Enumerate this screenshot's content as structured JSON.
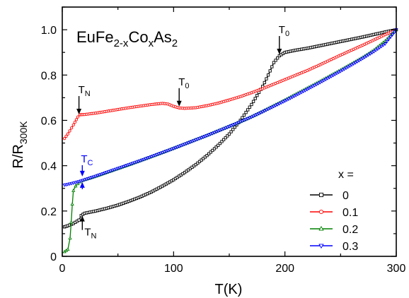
{
  "chart_data": {
    "type": "line",
    "title": "EuFe2-xCoxAs2",
    "title_parts": {
      "a": "EuFe",
      "b": "2-x",
      "c": "Co",
      "d": "x",
      "e": "As",
      "f": "2"
    },
    "xlabel": "T(K)",
    "ylabel": "R/R300K",
    "ylabel_parts": {
      "main": "R/R",
      "sub": "300K"
    },
    "xlim": [
      0,
      300
    ],
    "ylim": [
      0,
      1.1
    ],
    "x_ticks": [
      0,
      100,
      200,
      300
    ],
    "y_ticks": [
      0,
      0.2,
      0.4,
      0.6,
      0.8,
      1.0
    ],
    "x_tick_labels": [
      "0",
      "100",
      "200",
      "300"
    ],
    "y_tick_labels": [
      "0",
      "0.2",
      "0.4",
      "0.6",
      "0.8",
      "1.0"
    ],
    "grid": false,
    "legend": {
      "title": "x =",
      "placement": "lower-right",
      "entries": [
        "0",
        "0.1",
        "0.2",
        "0.3"
      ]
    },
    "series": [
      {
        "name": "0",
        "color": "#000000",
        "marker": "square",
        "x": [
          2,
          5,
          10,
          15,
          17,
          20,
          25,
          30,
          40,
          50,
          60,
          70,
          80,
          90,
          100,
          110,
          120,
          130,
          140,
          150,
          160,
          170,
          180,
          185,
          190,
          195,
          200,
          210,
          220,
          230,
          240,
          250,
          260,
          270,
          280,
          290,
          300
        ],
        "y": [
          0.13,
          0.135,
          0.145,
          0.16,
          0.18,
          0.19,
          0.195,
          0.2,
          0.212,
          0.226,
          0.243,
          0.262,
          0.284,
          0.31,
          0.338,
          0.37,
          0.405,
          0.445,
          0.49,
          0.54,
          0.6,
          0.67,
          0.75,
          0.8,
          0.855,
          0.885,
          0.9,
          0.91,
          0.918,
          0.928,
          0.938,
          0.948,
          0.958,
          0.968,
          0.979,
          0.99,
          1.0
        ]
      },
      {
        "name": "0.1",
        "color": "#ff0000",
        "marker": "circle",
        "x": [
          2,
          5,
          10,
          14,
          16,
          20,
          30,
          40,
          50,
          60,
          70,
          80,
          90,
          95,
          100,
          105,
          110,
          120,
          130,
          140,
          150,
          160,
          170,
          180,
          190,
          200,
          210,
          220,
          230,
          240,
          250,
          260,
          270,
          280,
          290,
          300
        ],
        "y": [
          0.52,
          0.54,
          0.58,
          0.615,
          0.625,
          0.626,
          0.632,
          0.64,
          0.648,
          0.656,
          0.663,
          0.67,
          0.675,
          0.672,
          0.662,
          0.655,
          0.653,
          0.656,
          0.665,
          0.676,
          0.69,
          0.705,
          0.722,
          0.74,
          0.76,
          0.78,
          0.8,
          0.82,
          0.842,
          0.865,
          0.888,
          0.91,
          0.932,
          0.955,
          0.978,
          1.0
        ]
      },
      {
        "name": "0.2",
        "color": "#008000",
        "marker": "triangle-up",
        "x": [
          2,
          5,
          7,
          8,
          9,
          10,
          12,
          14,
          16,
          18,
          20,
          25,
          30,
          40,
          50,
          60,
          70,
          80,
          90,
          100,
          110,
          120,
          130,
          140,
          150,
          160,
          170,
          180,
          190,
          200,
          210,
          220,
          230,
          240,
          250,
          260,
          270,
          280,
          290,
          300
        ],
        "y": [
          0.02,
          0.03,
          0.08,
          0.15,
          0.23,
          0.29,
          0.31,
          0.32,
          0.328,
          0.334,
          0.338,
          0.345,
          0.353,
          0.37,
          0.387,
          0.404,
          0.422,
          0.44,
          0.458,
          0.477,
          0.496,
          0.515,
          0.534,
          0.554,
          0.574,
          0.594,
          0.616,
          0.64,
          0.665,
          0.69,
          0.716,
          0.742,
          0.768,
          0.795,
          0.822,
          0.85,
          0.878,
          0.91,
          0.95,
          1.0
        ]
      },
      {
        "name": "0.3",
        "color": "#0000ff",
        "marker": "triangle-down",
        "x": [
          2,
          5,
          10,
          15,
          20,
          25,
          30,
          40,
          50,
          60,
          70,
          80,
          90,
          100,
          110,
          120,
          130,
          140,
          150,
          160,
          170,
          180,
          190,
          200,
          210,
          220,
          230,
          240,
          250,
          260,
          270,
          280,
          290,
          300
        ],
        "y": [
          0.315,
          0.318,
          0.324,
          0.33,
          0.338,
          0.346,
          0.354,
          0.371,
          0.388,
          0.405,
          0.422,
          0.44,
          0.458,
          0.476,
          0.495,
          0.514,
          0.533,
          0.553,
          0.573,
          0.594,
          0.615,
          0.638,
          0.662,
          0.686,
          0.711,
          0.737,
          0.763,
          0.79,
          0.817,
          0.845,
          0.874,
          0.904,
          0.938,
          1.0
        ]
      }
    ],
    "annotations": [
      {
        "text": "T",
        "sub": "N",
        "color": "#000000",
        "x": 15,
        "y": 0.62,
        "direction": "down"
      },
      {
        "text": "T",
        "sub": "0",
        "color": "#000000",
        "x": 105,
        "y": 0.655,
        "direction": "down"
      },
      {
        "text": "T",
        "sub": "0",
        "color": "#000000",
        "x": 195,
        "y": 0.885,
        "direction": "down"
      },
      {
        "text": "T",
        "sub": "C",
        "color": "#0000ff",
        "x": 18,
        "y": 0.34,
        "direction": "both"
      },
      {
        "text": "T",
        "sub": "N",
        "color": "#000000",
        "x": 18,
        "y": 0.185,
        "direction": "up"
      }
    ]
  }
}
